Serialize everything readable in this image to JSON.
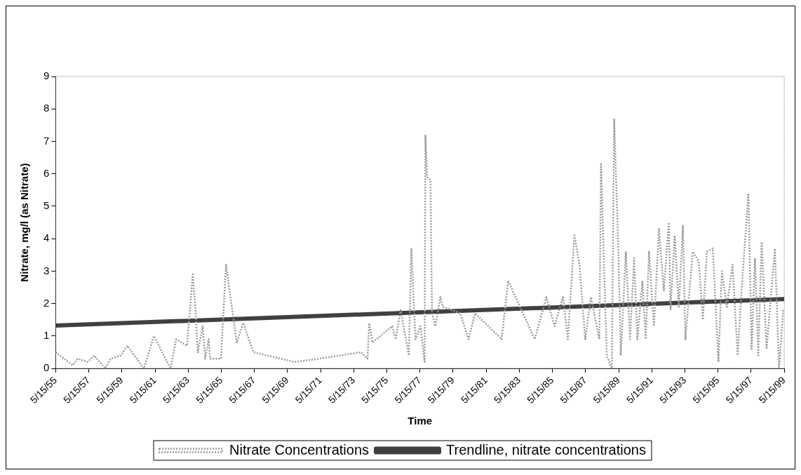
{
  "chart_data": {
    "type": "line",
    "xlabel": "Time",
    "ylabel": "Nitrate, mg/l (as Nitrate)",
    "xlim": [
      "1955-05-15",
      "1999-05-15"
    ],
    "xticks": [
      {
        "value": "1955-05-15",
        "label": "5/15/55"
      },
      {
        "value": "1957-05-15",
        "label": "5/15/57"
      },
      {
        "value": "1959-05-15",
        "label": "5/15/59"
      },
      {
        "value": "1961-05-15",
        "label": "5/15/61"
      },
      {
        "value": "1963-05-15",
        "label": "5/15/63"
      },
      {
        "value": "1965-05-15",
        "label": "5/15/65"
      },
      {
        "value": "1967-05-15",
        "label": "5/15/67"
      },
      {
        "value": "1969-05-15",
        "label": "5/15/69"
      },
      {
        "value": "1971-05-15",
        "label": "5/15/71"
      },
      {
        "value": "1973-05-15",
        "label": "5/15/73"
      },
      {
        "value": "1975-05-15",
        "label": "5/15/75"
      },
      {
        "value": "1977-05-15",
        "label": "5/15/77"
      },
      {
        "value": "1979-05-15",
        "label": "5/15/79"
      },
      {
        "value": "1981-05-15",
        "label": "5/15/81"
      },
      {
        "value": "1983-05-15",
        "label": "5/15/83"
      },
      {
        "value": "1985-05-15",
        "label": "5/15/85"
      },
      {
        "value": "1987-05-15",
        "label": "5/15/87"
      },
      {
        "value": "1989-05-15",
        "label": "5/15/89"
      },
      {
        "value": "1991-05-15",
        "label": "5/15/91"
      },
      {
        "value": "1993-05-15",
        "label": "5/15/93"
      },
      {
        "value": "1995-05-15",
        "label": "5/15/95"
      },
      {
        "value": "1997-05-15",
        "label": "5/15/97"
      },
      {
        "value": "1999-05-15",
        "label": "5/15/99"
      }
    ],
    "ylim": [
      0,
      9
    ],
    "yticks": [
      0,
      1,
      2,
      3,
      4,
      5,
      6,
      7,
      8,
      9
    ],
    "grid": false,
    "legend": "bottom",
    "series": [
      {
        "name": "Nitrate Concentrations",
        "type": "line",
        "color": "#9a9a9a",
        "line_style": "dotted",
        "x": [
          "1955-05-15",
          "1956-05-25",
          "1956-09-10",
          "1957-04-20",
          "1957-09-10",
          "1958-05-08",
          "1958-09-12",
          "1959-04-20",
          "1959-09-12",
          "1960-09-12",
          "1961-04-20",
          "1962-04-20",
          "1962-08-25",
          "1963-04-20",
          "1963-08-25",
          "1963-10-20",
          "1963-12-15",
          "1964-04-01",
          "1964-05-25",
          "1964-08-08",
          "1964-09-12",
          "1965-05-08",
          "1965-08-28",
          "1966-04-20",
          "1966-09-12",
          "1967-04-20",
          "1969-10-20",
          "1971-04-20",
          "1973-10-20",
          "1974-03-15",
          "1974-04-20",
          "1974-07-01",
          "1975-09-12",
          "1975-11-25",
          "1976-03-15",
          "1976-09-12",
          "1976-11-05",
          "1977-02-05",
          "1977-05-25",
          "1977-08-25",
          "1977-09-12",
          "1977-10-20",
          "1978-01-01",
          "1978-02-05",
          "1978-04-20",
          "1978-08-08",
          "1978-10-01",
          "1979-10-20",
          "1980-04-20",
          "1980-09-12",
          "1982-04-20",
          "1982-09-12",
          "1984-04-20",
          "1985-01-01",
          "1985-07-01",
          "1986-01-01",
          "1986-04-20",
          "1986-09-12",
          "1987-01-01",
          "1987-05-08",
          "1987-09-12",
          "1988-03-15",
          "1988-04-20",
          "1988-08-25",
          "1988-12-15",
          "1989-02-05",
          "1989-05-08",
          "1989-07-01",
          "1989-10-20",
          "1990-01-20",
          "1990-04-20",
          "1990-07-01",
          "1990-10-20",
          "1991-01-01",
          "1991-03-15",
          "1991-07-01",
          "1991-10-20",
          "1992-02-05",
          "1992-05-25",
          "1992-07-01",
          "1992-10-01",
          "1993-01-01",
          "1993-04-01",
          "1993-05-25",
          "1993-11-05",
          "1994-03-15",
          "1994-06-15",
          "1994-09-12",
          "1995-01-20",
          "1995-05-25",
          "1995-08-08",
          "1995-11-25",
          "1996-04-01",
          "1996-07-20",
          "1996-10-20",
          "1997-03-15",
          "1997-05-25",
          "1997-08-08",
          "1997-10-20",
          "1998-01-01",
          "1998-04-20",
          "1998-10-20",
          "1999-01-20",
          "1999-04-20"
        ],
        "values": [
          0.5,
          0.1,
          0.3,
          0.2,
          0.4,
          0,
          0.3,
          0.4,
          0.7,
          0,
          1.0,
          0,
          0.9,
          0.7,
          2.9,
          1.9,
          0.5,
          1.3,
          0.3,
          0.9,
          0.3,
          0.3,
          3.2,
          0.8,
          1.4,
          0.5,
          0.2,
          0.3,
          0.5,
          0.3,
          1.4,
          0.8,
          1.3,
          0.9,
          1.8,
          0.4,
          3.7,
          0.9,
          1.3,
          0.2,
          7.2,
          5.9,
          5.8,
          1.7,
          1.3,
          2.2,
          1.9,
          1.7,
          0.9,
          1.7,
          0.9,
          2.7,
          0.9,
          2.2,
          1.3,
          2.2,
          0.9,
          4.1,
          3.2,
          0.9,
          2.2,
          0.9,
          6.3,
          0.4,
          0,
          7.7,
          3.6,
          0.4,
          3.6,
          0.9,
          3.4,
          0.9,
          2.7,
          0.9,
          3.6,
          1.3,
          4.3,
          2.4,
          4.5,
          1.8,
          4.1,
          1.9,
          4.4,
          0.9,
          3.6,
          3.3,
          1.5,
          3.6,
          3.7,
          0.2,
          3.0,
          1.9,
          3.2,
          0.4,
          2.5,
          5.4,
          0.6,
          3.4,
          0.4,
          3.9,
          0.6,
          3.7,
          0,
          1.8
        ]
      },
      {
        "name": "Trendline, nitrate concentrations",
        "type": "line",
        "color": "#404040",
        "line_style": "solid",
        "x": [
          "1955-05-15",
          "1999-05-15"
        ],
        "values": [
          1.32,
          2.14
        ]
      }
    ]
  }
}
